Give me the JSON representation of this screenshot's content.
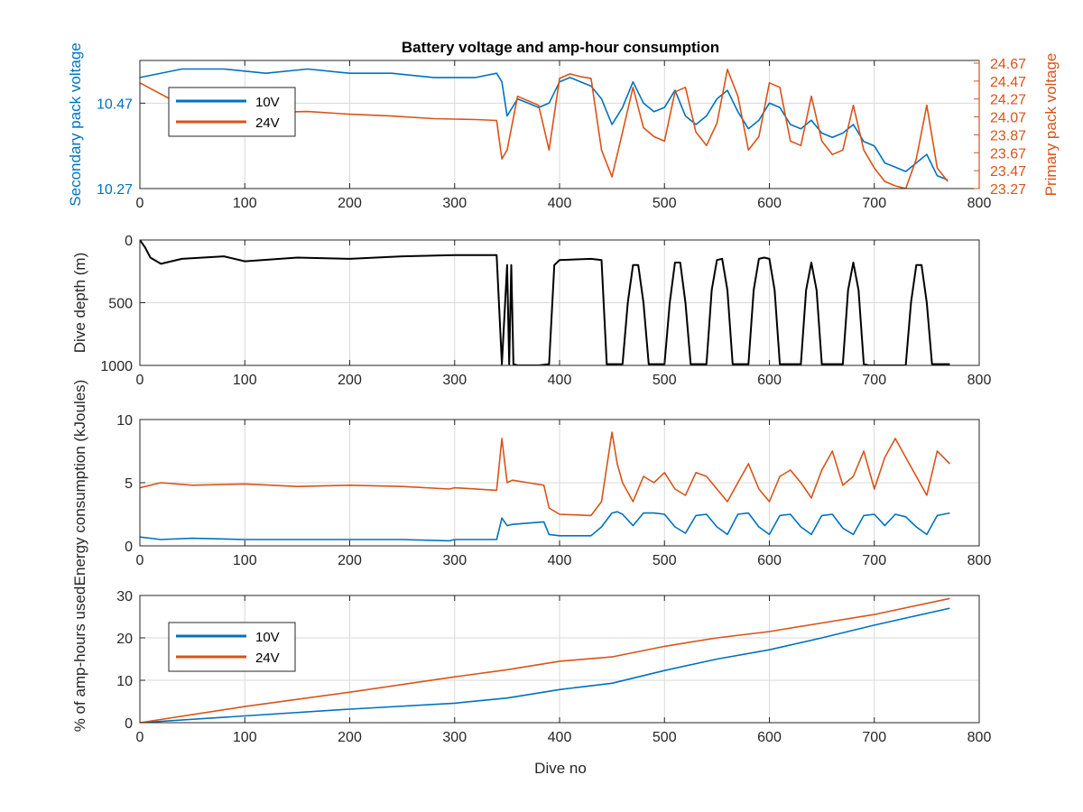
{
  "figure": {
    "title": "Battery voltage and amp-hour consumption",
    "xlabel": "Dive no"
  },
  "colors": {
    "blue": "#0072BD",
    "orange": "#D95319",
    "black": "#000000",
    "grid": "#d9d9d9",
    "axis": "#262626"
  },
  "chart_data": [
    {
      "type": "line",
      "title": "Battery voltage and amp-hour consumption",
      "xlabel": "",
      "ylabel": "Secondary pack voltage",
      "ylabel_right": "Primary pack voltage",
      "xlim": [
        0,
        800
      ],
      "ylim": [
        10.27,
        10.57
      ],
      "ylim_right": [
        23.27,
        24.7
      ],
      "x_ticks": [
        "0",
        "100",
        "200",
        "300",
        "400",
        "500",
        "600",
        "700",
        "800"
      ],
      "y_ticks": [
        "10.27",
        "10.47"
      ],
      "y_ticks_right": [
        "23.27",
        "23.47",
        "23.67",
        "23.87",
        "24.07",
        "24.27",
        "24.47",
        "24.67"
      ],
      "grid": true,
      "legend": {
        "placement": "top-left",
        "entries": [
          "10V",
          "24V"
        ]
      },
      "x": [
        0,
        40,
        80,
        120,
        160,
        200,
        240,
        280,
        320,
        340,
        345,
        350,
        360,
        370,
        380,
        390,
        400,
        410,
        420,
        430,
        440,
        450,
        460,
        470,
        480,
        490,
        500,
        510,
        520,
        530,
        540,
        550,
        560,
        570,
        580,
        590,
        600,
        610,
        620,
        630,
        640,
        650,
        660,
        670,
        680,
        690,
        700,
        710,
        720,
        730,
        740,
        750,
        760,
        770
      ],
      "series": [
        {
          "name": "10V",
          "axis": "left",
          "values": [
            10.53,
            10.55,
            10.55,
            10.54,
            10.55,
            10.54,
            10.54,
            10.53,
            10.53,
            10.54,
            10.52,
            10.44,
            10.48,
            10.47,
            10.46,
            10.47,
            10.52,
            10.53,
            10.52,
            10.51,
            10.48,
            10.42,
            10.46,
            10.52,
            10.47,
            10.45,
            10.46,
            10.5,
            10.44,
            10.42,
            10.44,
            10.48,
            10.5,
            10.45,
            10.41,
            10.43,
            10.47,
            10.46,
            10.42,
            10.41,
            10.43,
            10.4,
            10.39,
            10.4,
            10.42,
            10.38,
            10.37,
            10.33,
            10.32,
            10.31,
            10.33,
            10.35,
            10.3,
            10.29
          ]
        },
        {
          "name": "24V",
          "axis": "right",
          "values": [
            24.45,
            24.2,
            24.15,
            24.12,
            24.13,
            24.1,
            24.08,
            24.05,
            24.04,
            24.03,
            23.6,
            23.7,
            24.3,
            24.25,
            24.2,
            23.7,
            24.5,
            24.55,
            24.52,
            24.5,
            23.7,
            23.4,
            23.9,
            24.4,
            23.95,
            23.85,
            23.8,
            24.35,
            24.4,
            23.9,
            23.75,
            24.0,
            24.6,
            24.3,
            23.7,
            23.85,
            24.45,
            24.4,
            23.8,
            23.75,
            24.3,
            23.8,
            23.65,
            23.7,
            24.2,
            23.7,
            23.5,
            23.35,
            23.3,
            23.27,
            23.6,
            24.2,
            23.5,
            23.35
          ]
        }
      ]
    },
    {
      "type": "line",
      "xlabel": "",
      "ylabel": "Dive depth (m)",
      "xlim": [
        0,
        800
      ],
      "ylim": [
        0,
        1000
      ],
      "y_reversed": true,
      "x_ticks": [
        "0",
        "100",
        "200",
        "300",
        "400",
        "500",
        "600",
        "700",
        "800"
      ],
      "y_ticks": [
        "0",
        "500",
        "1000"
      ],
      "grid": true,
      "x": [
        0,
        5,
        10,
        20,
        40,
        80,
        100,
        150,
        200,
        250,
        300,
        340,
        345,
        350,
        352,
        354,
        356,
        360,
        380,
        390,
        395,
        400,
        430,
        440,
        445,
        460,
        465,
        470,
        475,
        480,
        485,
        500,
        505,
        510,
        515,
        520,
        525,
        540,
        545,
        550,
        555,
        560,
        565,
        570,
        580,
        585,
        590,
        595,
        600,
        605,
        610,
        620,
        630,
        635,
        640,
        645,
        650,
        670,
        675,
        680,
        685,
        690,
        695,
        730,
        735,
        740,
        745,
        750,
        755,
        772
      ],
      "series": [
        {
          "name": "",
          "color": "black",
          "values": [
            0,
            60,
            140,
            190,
            150,
            130,
            170,
            140,
            150,
            130,
            120,
            120,
            990,
            200,
            990,
            200,
            990,
            1000,
            1000,
            990,
            200,
            160,
            150,
            160,
            990,
            990,
            500,
            200,
            200,
            500,
            990,
            990,
            500,
            180,
            180,
            500,
            990,
            990,
            400,
            160,
            150,
            400,
            990,
            990,
            990,
            400,
            150,
            140,
            150,
            400,
            990,
            990,
            990,
            400,
            180,
            400,
            990,
            990,
            400,
            180,
            400,
            990,
            1000,
            1000,
            500,
            200,
            200,
            500,
            990,
            990
          ]
        }
      ]
    },
    {
      "type": "line",
      "xlabel": "",
      "ylabel": "Energy consumption (kJoules)",
      "xlim": [
        0,
        800
      ],
      "ylim": [
        0,
        10
      ],
      "x_ticks": [
        "0",
        "100",
        "200",
        "300",
        "400",
        "500",
        "600",
        "700",
        "800"
      ],
      "y_ticks": [
        "0",
        "5",
        "10"
      ],
      "grid": true,
      "x": [
        0,
        20,
        50,
        100,
        150,
        200,
        250,
        295,
        300,
        340,
        345,
        350,
        355,
        370,
        385,
        390,
        400,
        430,
        440,
        450,
        455,
        460,
        470,
        480,
        490,
        500,
        510,
        520,
        530,
        540,
        550,
        560,
        570,
        580,
        590,
        600,
        610,
        620,
        630,
        640,
        650,
        660,
        670,
        680,
        690,
        700,
        710,
        720,
        730,
        740,
        750,
        760,
        772
      ],
      "series": [
        {
          "name": "",
          "color": "orange",
          "values": [
            4.6,
            5.0,
            4.8,
            4.9,
            4.7,
            4.8,
            4.7,
            4.5,
            4.6,
            4.4,
            8.5,
            5.0,
            5.2,
            5.0,
            4.8,
            3.0,
            2.5,
            2.4,
            3.5,
            9.0,
            6.5,
            5.0,
            3.5,
            5.5,
            5.0,
            5.8,
            4.5,
            4.0,
            5.8,
            5.5,
            4.5,
            3.5,
            5.0,
            6.5,
            4.5,
            3.5,
            5.5,
            6.0,
            5.0,
            3.8,
            6.0,
            7.5,
            4.8,
            5.5,
            7.5,
            4.5,
            7.0,
            8.5,
            7.0,
            5.5,
            4.0,
            7.5,
            6.5
          ]
        },
        {
          "name": "",
          "color": "blue",
          "values": [
            0.7,
            0.5,
            0.6,
            0.5,
            0.5,
            0.5,
            0.5,
            0.4,
            0.5,
            0.5,
            2.2,
            1.6,
            1.7,
            1.8,
            1.9,
            0.9,
            0.8,
            0.8,
            1.5,
            2.6,
            2.7,
            2.5,
            1.6,
            2.6,
            2.6,
            2.5,
            1.5,
            1.0,
            2.4,
            2.5,
            1.5,
            0.9,
            2.5,
            2.6,
            1.5,
            0.9,
            2.4,
            2.5,
            1.5,
            0.9,
            2.4,
            2.5,
            1.4,
            0.9,
            2.4,
            2.5,
            1.6,
            2.5,
            2.3,
            1.5,
            0.9,
            2.4,
            2.6
          ]
        }
      ]
    },
    {
      "type": "line",
      "xlabel": "Dive no",
      "ylabel": "% of amp-hours used",
      "xlim": [
        0,
        800
      ],
      "ylim": [
        0,
        30
      ],
      "x_ticks": [
        "0",
        "100",
        "200",
        "300",
        "400",
        "500",
        "600",
        "700",
        "800"
      ],
      "y_ticks": [
        "0",
        "10",
        "20",
        "30"
      ],
      "grid": true,
      "legend": {
        "placement": "top-left",
        "entries": [
          "10V",
          "24V"
        ]
      },
      "x": [
        0,
        100,
        200,
        300,
        350,
        400,
        450,
        500,
        550,
        600,
        650,
        700,
        772
      ],
      "series": [
        {
          "name": "10V",
          "values": [
            0,
            1.6,
            3.2,
            4.6,
            5.8,
            7.8,
            9.3,
            12.3,
            15.0,
            17.2,
            20.0,
            23.0,
            27.0
          ]
        },
        {
          "name": "24V",
          "values": [
            0,
            3.8,
            7.2,
            10.8,
            12.5,
            14.5,
            15.5,
            18.0,
            20.0,
            21.5,
            23.5,
            25.5,
            29.3
          ]
        }
      ]
    }
  ]
}
